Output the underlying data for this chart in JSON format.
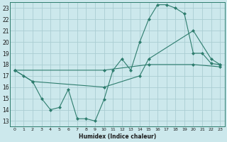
{
  "xlabel": "Humidex (Indice chaleur)",
  "bg_color": "#cce8ec",
  "grid_color": "#aacdd2",
  "line_color": "#2e7d6e",
  "spine_color": "#2e7d6e",
  "ylim": [
    12.5,
    23.5
  ],
  "xlim": [
    -0.5,
    23.5
  ],
  "yticks": [
    13,
    14,
    15,
    16,
    17,
    18,
    19,
    20,
    21,
    22,
    23
  ],
  "xticks": [
    0,
    1,
    2,
    3,
    4,
    5,
    6,
    7,
    8,
    9,
    10,
    11,
    12,
    13,
    14,
    15,
    16,
    17,
    18,
    19,
    20,
    21,
    22,
    23
  ],
  "series1": [
    [
      0,
      17.5
    ],
    [
      1,
      17.0
    ],
    [
      2,
      16.5
    ],
    [
      3,
      15.0
    ],
    [
      4,
      14.0
    ],
    [
      5,
      14.2
    ],
    [
      6,
      15.8
    ],
    [
      7,
      13.2
    ],
    [
      8,
      13.2
    ],
    [
      9,
      13.0
    ],
    [
      10,
      14.9
    ],
    [
      11,
      17.5
    ],
    [
      12,
      18.5
    ],
    [
      13,
      17.5
    ],
    [
      14,
      20.0
    ],
    [
      15,
      22.0
    ],
    [
      16,
      23.3
    ],
    [
      17,
      23.3
    ],
    [
      18,
      23.0
    ],
    [
      19,
      22.5
    ],
    [
      20,
      19.0
    ],
    [
      21,
      19.0
    ],
    [
      22,
      18.1
    ],
    [
      23,
      18.0
    ]
  ],
  "series2": [
    [
      0,
      17.5
    ],
    [
      2,
      16.5
    ],
    [
      10,
      16.0
    ],
    [
      14,
      17.0
    ],
    [
      15,
      18.5
    ],
    [
      20,
      21.0
    ],
    [
      22,
      18.5
    ],
    [
      23,
      18.0
    ]
  ],
  "series3": [
    [
      0,
      17.5
    ],
    [
      10,
      17.5
    ],
    [
      15,
      18.0
    ],
    [
      20,
      18.0
    ],
    [
      23,
      17.8
    ]
  ]
}
